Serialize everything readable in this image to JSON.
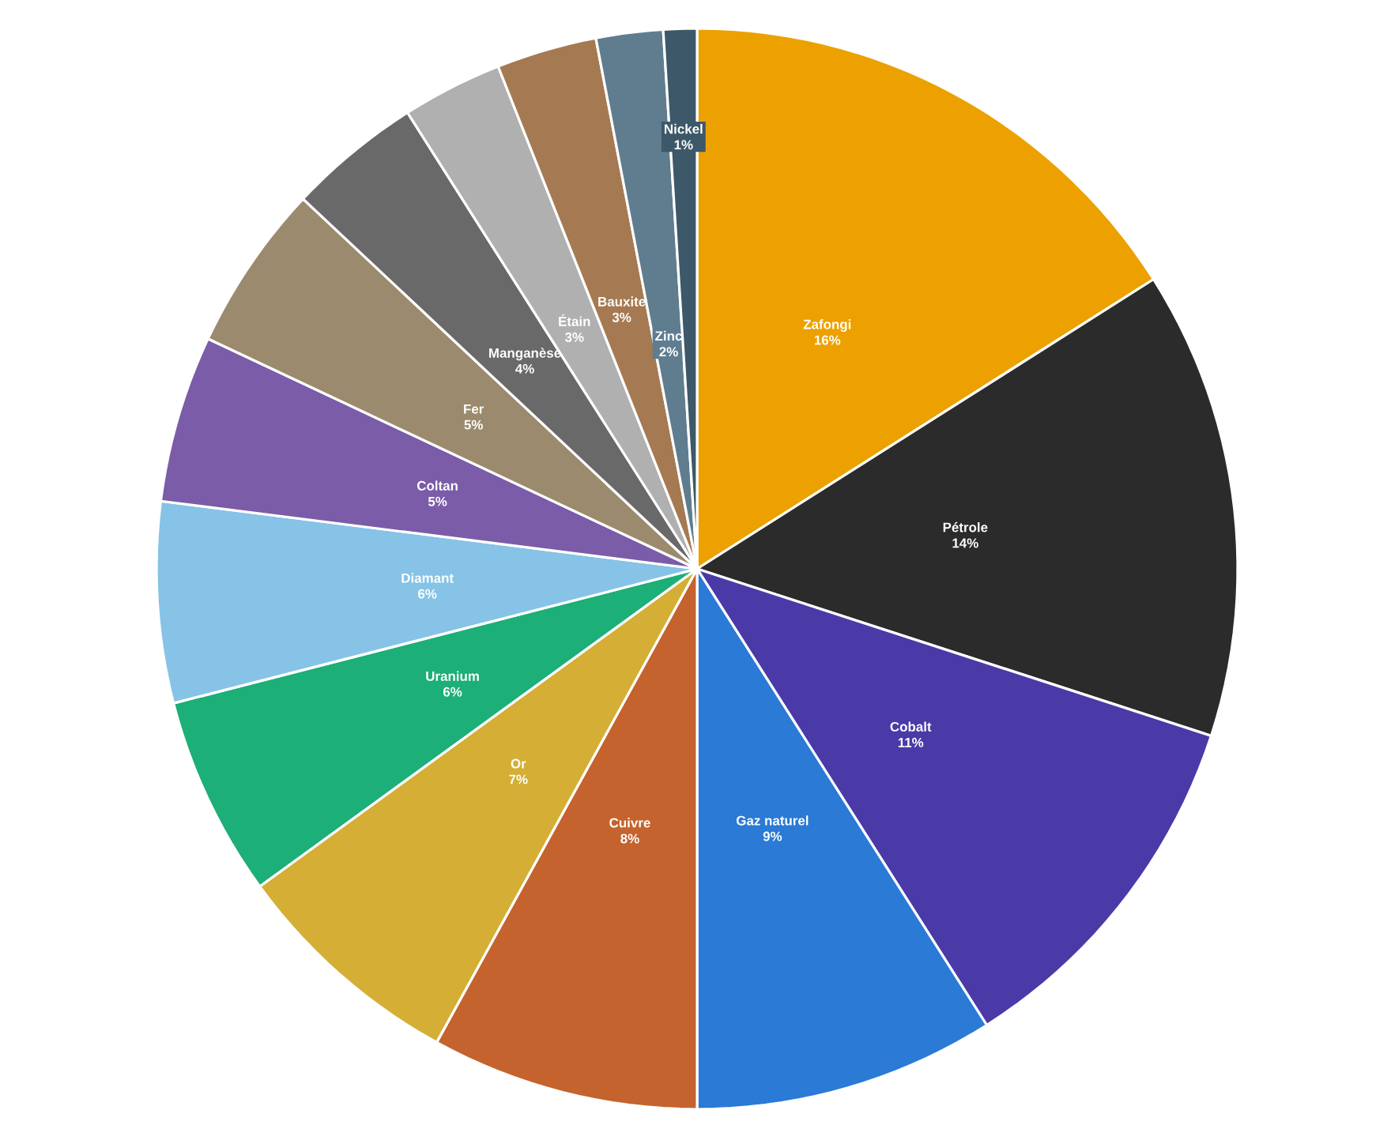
{
  "chart_data": {
    "type": "pie",
    "categories": [
      "Zafongi",
      "Pétrole",
      "Cobalt",
      "Gaz naturel",
      "Cuivre",
      "Or",
      "Uranium",
      "Diamant",
      "Coltan",
      "Fer",
      "Manganèse",
      "Étain",
      "Bauxite",
      "Zinc",
      "Nickel"
    ],
    "values": [
      16,
      14,
      11,
      9,
      8,
      7,
      6,
      6,
      5,
      5,
      4,
      3,
      3,
      2,
      1
    ],
    "value_labels": [
      "16%",
      "14%",
      "11%",
      "9%",
      "8%",
      "7%",
      "6%",
      "6%",
      "5%",
      "5%",
      "4%",
      "3%",
      "3%",
      "2%",
      "1%"
    ],
    "colors": [
      "#eca100",
      "#2b2b2b",
      "#4a3aa8",
      "#2a7ad6",
      "#c4632d",
      "#d4ae35",
      "#1caf77",
      "#86c3e6",
      "#7a5ca8",
      "#9b8a6e",
      "#696969",
      "#b0b0b0",
      "#a57a52",
      "#5f7d8f",
      "#3d5868"
    ],
    "legend": false
  }
}
